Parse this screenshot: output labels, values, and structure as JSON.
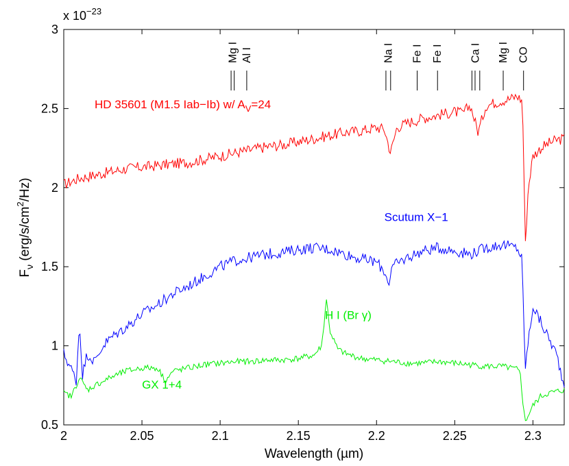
{
  "chart_data": {
    "type": "line",
    "xlabel": "Wavelength (µm)",
    "ylabel_main": "F",
    "ylabel_sub": "ν",
    "ylabel_rest1": " (erg/s/cm",
    "ylabel_sup": "2",
    "ylabel_rest2": "/Hz)",
    "scale_note_base": "x 10",
    "scale_note_exp": "−23",
    "xlim": [
      2.0,
      2.32
    ],
    "ylim": [
      0.5,
      3.0
    ],
    "xticks": [
      2.0,
      2.05,
      2.1,
      2.15,
      2.2,
      2.25,
      2.3
    ],
    "xtick_labels": [
      "2",
      "2.05",
      "2.1",
      "2.15",
      "2.2",
      "2.25",
      "2.3"
    ],
    "yticks": [
      0.5,
      1.0,
      1.5,
      2.0,
      2.5,
      3.0
    ],
    "ytick_labels": [
      "0.5",
      "1",
      "1.5",
      "2",
      "2.5",
      "3"
    ],
    "series": [
      {
        "name": "HD 35601",
        "label_main": "HD 35601 (M1.5 Iab−Ib) w/ A",
        "label_sub": "V",
        "label_tail": "=24",
        "color": "#ff0000",
        "x": [
          2.0,
          2.005,
          2.01,
          2.02,
          2.03,
          2.04,
          2.05,
          2.06,
          2.07,
          2.08,
          2.09,
          2.1,
          2.11,
          2.12,
          2.13,
          2.14,
          2.15,
          2.16,
          2.17,
          2.18,
          2.19,
          2.2,
          2.205,
          2.209,
          2.213,
          2.22,
          2.23,
          2.24,
          2.25,
          2.255,
          2.26,
          2.265,
          2.27,
          2.28,
          2.285,
          2.29,
          2.293,
          2.294,
          2.295,
          2.297,
          2.3,
          2.305,
          2.31,
          2.315,
          2.32
        ],
        "y": [
          2.02,
          2.04,
          2.06,
          2.08,
          2.1,
          2.12,
          2.13,
          2.14,
          2.15,
          2.16,
          2.18,
          2.2,
          2.22,
          2.24,
          2.26,
          2.27,
          2.29,
          2.31,
          2.33,
          2.35,
          2.36,
          2.38,
          2.37,
          2.22,
          2.38,
          2.41,
          2.44,
          2.46,
          2.48,
          2.47,
          2.52,
          2.35,
          2.52,
          2.55,
          2.56,
          2.58,
          2.55,
          2.3,
          1.6,
          2.0,
          2.2,
          2.25,
          2.28,
          2.3,
          2.31
        ]
      },
      {
        "name": "Scutum X-1",
        "label_main": "Scutum X−1",
        "color": "#0000ff",
        "x": [
          2.0,
          2.005,
          2.008,
          2.01,
          2.012,
          2.015,
          2.02,
          2.025,
          2.03,
          2.04,
          2.05,
          2.06,
          2.07,
          2.08,
          2.09,
          2.1,
          2.11,
          2.12,
          2.13,
          2.14,
          2.15,
          2.16,
          2.17,
          2.18,
          2.19,
          2.2,
          2.205,
          2.208,
          2.21,
          2.22,
          2.23,
          2.24,
          2.25,
          2.26,
          2.27,
          2.28,
          2.29,
          2.293,
          2.294,
          2.295,
          2.298,
          2.3,
          2.305,
          2.31,
          2.315,
          2.32
        ],
        "y": [
          0.95,
          0.85,
          0.78,
          1.15,
          0.82,
          0.95,
          0.9,
          1.0,
          1.05,
          1.12,
          1.2,
          1.26,
          1.33,
          1.38,
          1.44,
          1.5,
          1.54,
          1.56,
          1.58,
          1.59,
          1.61,
          1.62,
          1.61,
          1.58,
          1.55,
          1.53,
          1.47,
          1.4,
          1.5,
          1.56,
          1.6,
          1.62,
          1.6,
          1.58,
          1.62,
          1.64,
          1.62,
          1.55,
          1.2,
          0.86,
          1.1,
          1.25,
          1.15,
          1.05,
          0.95,
          0.75
        ]
      },
      {
        "name": "GX 1+4",
        "label_main": "GX 1+4",
        "color": "#00ee00",
        "x": [
          2.0,
          2.005,
          2.01,
          2.015,
          2.02,
          2.03,
          2.04,
          2.05,
          2.06,
          2.065,
          2.07,
          2.08,
          2.09,
          2.1,
          2.11,
          2.12,
          2.13,
          2.14,
          2.15,
          2.16,
          2.165,
          2.168,
          2.17,
          2.175,
          2.18,
          2.19,
          2.2,
          2.21,
          2.22,
          2.23,
          2.24,
          2.25,
          2.26,
          2.27,
          2.28,
          2.29,
          2.292,
          2.294,
          2.295,
          2.297,
          2.3,
          2.305,
          2.31,
          2.315,
          2.32
        ],
        "y": [
          0.7,
          0.68,
          0.8,
          0.72,
          0.75,
          0.8,
          0.84,
          0.86,
          0.86,
          0.78,
          0.84,
          0.86,
          0.88,
          0.89,
          0.9,
          0.9,
          0.91,
          0.91,
          0.92,
          0.94,
          1.0,
          1.3,
          1.1,
          0.98,
          0.95,
          0.92,
          0.91,
          0.9,
          0.89,
          0.89,
          0.9,
          0.89,
          0.88,
          0.87,
          0.87,
          0.85,
          0.82,
          0.6,
          0.52,
          0.56,
          0.62,
          0.68,
          0.7,
          0.71,
          0.72
        ]
      }
    ],
    "annotations": [
      {
        "text": "H I (Br γ)",
        "color": "#00ee00",
        "x": 2.167,
        "y": 1.17
      },
      {
        "text": "Scutum X−1",
        "color": "#0000ff",
        "x": 2.205,
        "y": 1.79
      },
      {
        "text": "GX 1+4",
        "color": "#00ee00",
        "x": 2.05,
        "y": 0.73
      }
    ],
    "line_markers": [
      {
        "label": "Mg I",
        "x": [
          2.107,
          2.109
        ]
      },
      {
        "label": "Al I",
        "x": [
          2.117
        ]
      },
      {
        "label": "Na I",
        "x": [
          2.206,
          2.209
        ]
      },
      {
        "label": "Fe I",
        "x": [
          2.226
        ]
      },
      {
        "label": "Fe I",
        "x": [
          2.239
        ]
      },
      {
        "label": "Ca I",
        "x": [
          2.261,
          2.263,
          2.266
        ]
      },
      {
        "label": "Mg I",
        "x": [
          2.281
        ]
      },
      {
        "label": "CO",
        "x": [
          2.294
        ]
      }
    ]
  }
}
